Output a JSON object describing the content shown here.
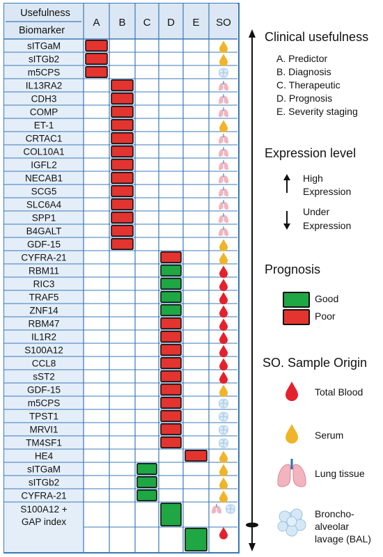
{
  "header": {
    "usefulness": "Usefulness",
    "biomarker": "Biomarker",
    "columns": [
      "A",
      "B",
      "C",
      "D",
      "E",
      "SO"
    ]
  },
  "rows": [
    {
      "label": "sITGaM",
      "cols": [
        "A"
      ],
      "so": [
        "serum"
      ]
    },
    {
      "label": "sITGb2",
      "cols": [
        "A"
      ],
      "so": [
        "serum"
      ]
    },
    {
      "label": "m5CPS",
      "cols": [
        "A"
      ],
      "so": [
        "bal"
      ]
    },
    {
      "label": "IL13RA2",
      "cols": [
        "B"
      ],
      "so": [
        "lung"
      ]
    },
    {
      "label": "CDH3",
      "cols": [
        "B"
      ],
      "so": [
        "lung"
      ]
    },
    {
      "label": "COMP",
      "cols": [
        "B"
      ],
      "so": [
        "lung"
      ]
    },
    {
      "label": "ET-1",
      "cols": [
        "B"
      ],
      "so": [
        "serum"
      ]
    },
    {
      "label": "CRTAC1",
      "cols": [
        "B"
      ],
      "so": [
        "lung"
      ]
    },
    {
      "label": "COL10A1",
      "cols": [
        "B"
      ],
      "so": [
        "lung"
      ]
    },
    {
      "label": "IGFL2",
      "cols": [
        "B"
      ],
      "so": [
        "lung"
      ]
    },
    {
      "label": "NECAB1",
      "cols": [
        "B"
      ],
      "so": [
        "lung"
      ]
    },
    {
      "label": "SCG5",
      "cols": [
        "B"
      ],
      "so": [
        "lung"
      ]
    },
    {
      "label": "SLC6A4",
      "cols": [
        "B"
      ],
      "so": [
        "lung"
      ]
    },
    {
      "label": "SPP1",
      "cols": [
        "B"
      ],
      "so": [
        "lung"
      ]
    },
    {
      "label": "B4GALT",
      "cols": [
        "B"
      ],
      "so": [
        "lung"
      ]
    },
    {
      "label": "GDF-15",
      "cols": [
        "B"
      ],
      "so": [
        "serum"
      ]
    },
    {
      "label": "CYFRA-21",
      "cols": [
        "D"
      ],
      "so": [
        "serum"
      ]
    },
    {
      "label": "RBM11",
      "cols": [
        "D"
      ],
      "so": [
        "blood"
      ]
    },
    {
      "label": "RIC3",
      "cols": [
        "D"
      ],
      "so": [
        "blood"
      ]
    },
    {
      "label": "TRAF5",
      "cols": [
        "D"
      ],
      "so": [
        "blood"
      ]
    },
    {
      "label": "ZNF14",
      "cols": [
        "D"
      ],
      "so": [
        "blood"
      ]
    },
    {
      "label": "RBM47",
      "cols": [
        "D"
      ],
      "so": [
        "blood"
      ]
    },
    {
      "label": "IL1R2",
      "cols": [
        "D"
      ],
      "so": [
        "blood"
      ]
    },
    {
      "label": "S100A12",
      "cols": [
        "D"
      ],
      "so": [
        "blood"
      ]
    },
    {
      "label": "CCL8",
      "cols": [
        "D"
      ],
      "so": [
        "blood"
      ]
    },
    {
      "label": "sST2",
      "cols": [
        "D"
      ],
      "so": [
        "blood"
      ]
    },
    {
      "label": "GDF-15",
      "cols": [
        "D"
      ],
      "so": [
        "serum"
      ]
    },
    {
      "label": "m5CPS",
      "cols": [
        "D"
      ],
      "so": [
        "bal"
      ]
    },
    {
      "label": "TPST1",
      "cols": [
        "D"
      ],
      "so": [
        "bal"
      ]
    },
    {
      "label": "MRVI1",
      "cols": [
        "D"
      ],
      "so": [
        "bal"
      ]
    },
    {
      "label": "TM4SF1",
      "cols": [
        "D"
      ],
      "so": [
        "bal"
      ]
    },
    {
      "label": "HE4",
      "cols": [
        "E"
      ],
      "so": [
        "serum"
      ]
    },
    {
      "label": "sITGaM",
      "cols": [
        "C"
      ],
      "so": [
        "serum"
      ]
    },
    {
      "label": "sITGb2",
      "cols": [
        "C"
      ],
      "so": [
        "serum"
      ]
    },
    {
      "label": "CYFRA-21",
      "cols": [
        "C"
      ],
      "so": [
        "serum"
      ]
    }
  ],
  "last_row": {
    "label_line1": "S100A12 +",
    "label_line2": "GAP index",
    "cols": [
      "D",
      "E"
    ],
    "so": [
      "lung",
      "bal",
      "blood"
    ]
  },
  "prognosis_marks": [
    "poor",
    "poor",
    "poor",
    "poor",
    "poor",
    "poor",
    "poor",
    "poor",
    "poor",
    "poor",
    "poor",
    "poor",
    "poor",
    "poor",
    "poor",
    "poor",
    "poor",
    "good",
    "good",
    "good",
    "good",
    "poor",
    "poor",
    "poor",
    "poor",
    "poor",
    "poor",
    "poor",
    "poor",
    "poor",
    "poor",
    "poor",
    "good",
    "good",
    "good",
    "good",
    "good"
  ],
  "legend": {
    "clinical_title": "Clinical usefulness",
    "clinical_items": [
      "A. Predictor",
      "B. Diagnosis",
      "C. Therapeutic",
      "D. Prognosis",
      "E. Severity staging"
    ],
    "expression_title": "Expression level",
    "expression_high_1": "High",
    "expression_high_2": "Expression",
    "expression_under_1": "Under",
    "expression_under_2": "Expression",
    "prognosis_title": "Prognosis",
    "good": "Good",
    "poor": "Poor",
    "origin_title": "SO. Sample Origin",
    "origin_blood": "Total Blood",
    "origin_serum": "Serum",
    "origin_lung": "Lung tissue",
    "origin_bal_1": "Broncho-",
    "origin_bal_2": "alveolar",
    "origin_bal_3": "lavage (BAL)"
  },
  "colors": {
    "poor": "#e3342f",
    "good": "#1ea742",
    "grid": "#3a78b5",
    "serum": "#f0b42a",
    "blood": "#e4222d",
    "lung": "#f2b4be",
    "bal": "#c7dff2"
  }
}
